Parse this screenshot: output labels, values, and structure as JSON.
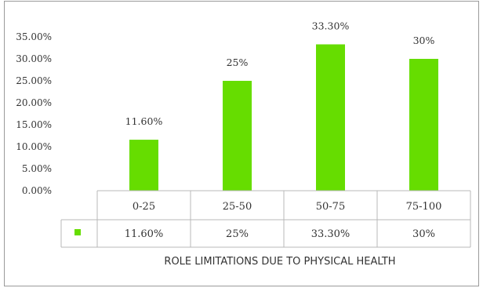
{
  "chart_data": {
    "type": "bar",
    "categories": [
      "0-25",
      "25-50",
      "50-75",
      "75-100"
    ],
    "values": [
      11.6,
      25,
      33.3,
      30
    ],
    "data_labels": [
      "11.60%",
      "25%",
      "33.30%",
      "30%"
    ],
    "table_values": [
      "11.60%",
      "25%",
      "33.30%",
      "30%"
    ],
    "y_ticks": [
      "0.00%",
      "5.00%",
      "10.00%",
      "15.00%",
      "20.00%",
      "25.00%",
      "30.00%",
      "35.00%"
    ],
    "ylim": [
      0,
      35
    ],
    "xlabel": "ROLE LIMITATIONS DUE TO PHYSICAL HEALTH",
    "series_color": "#66dd00",
    "grid": false,
    "legend": "data-table"
  }
}
